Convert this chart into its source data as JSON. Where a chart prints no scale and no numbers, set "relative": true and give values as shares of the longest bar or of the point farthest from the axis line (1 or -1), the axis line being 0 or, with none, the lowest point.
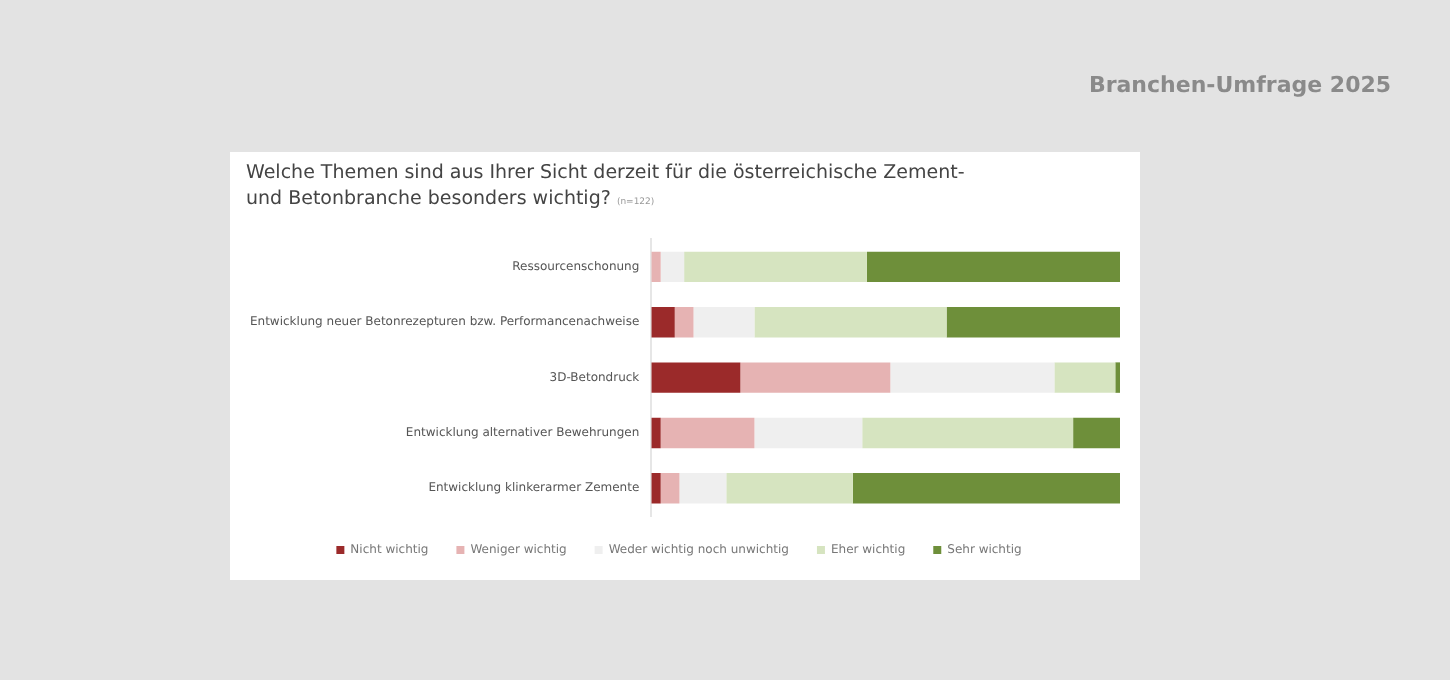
{
  "chart_data": {
    "type": "bar",
    "orientation": "horizontal",
    "stacked": true,
    "relative": true,
    "title": "Welche Themen sind aus Ihrer Sicht derzeit für die österreichische Zement- und Betonbranche besonders wichtig?",
    "annotations": [
      "(n=122)",
      "Branchen-Umfrage 2025"
    ],
    "categories": [
      "Ressourcenschonung",
      "Entwicklung neuer Betonrezepturen bzw. Performancenachweise",
      "3D-Betondruck",
      "Entwicklung alternativer Bewehrungen",
      "Entwicklung klinkerarmer Zemente"
    ],
    "series": [
      {
        "name": "Nicht wichtig",
        "color": "#9b2a2a",
        "values": [
          0,
          0.05,
          0.19,
          0.02,
          0.02
        ]
      },
      {
        "name": "Weniger wichtig",
        "color": "#e6b3b3",
        "values": [
          0.02,
          0.04,
          0.32,
          0.2,
          0.04
        ]
      },
      {
        "name": "Weder wichtig noch unwichtig",
        "color": "#efefef",
        "values": [
          0.05,
          0.13,
          0.35,
          0.23,
          0.1
        ]
      },
      {
        "name": "Eher wichtig",
        "color": "#d6e4c0",
        "values": [
          0.39,
          0.41,
          0.13,
          0.45,
          0.27
        ]
      },
      {
        "name": "Sehr wichtig",
        "color": "#6e8f3a",
        "values": [
          0.54,
          0.37,
          0.01,
          0.1,
          0.57
        ]
      }
    ],
    "grid": false,
    "legend": "bottom"
  }
}
